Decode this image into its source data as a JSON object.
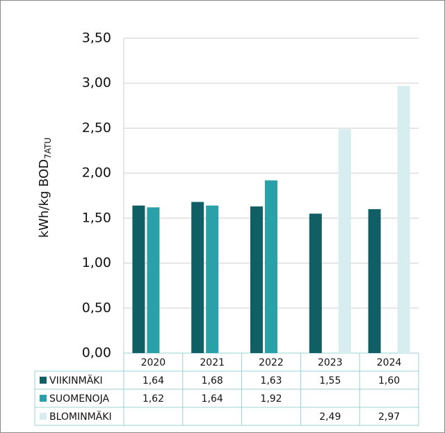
{
  "chart_data": {
    "type": "bar",
    "y_label": "kWh/kg BOD",
    "y_label_subscript": "7ATU",
    "categories": [
      "2020",
      "2021",
      "2022",
      "2023",
      "2024"
    ],
    "series": [
      {
        "name": "VIIKINMÄKI",
        "color": "#0f5f64",
        "values": [
          1.64,
          1.68,
          1.63,
          1.55,
          1.6
        ],
        "value_labels": [
          "1,64",
          "1,68",
          "1,63",
          "1,55",
          "1,60"
        ]
      },
      {
        "name": "SUOMENOJA",
        "color": "#2aa1a9",
        "values": [
          1.62,
          1.64,
          1.92,
          null,
          null
        ],
        "value_labels": [
          "1,62",
          "1,64",
          "1,92",
          null,
          null
        ]
      },
      {
        "name": "BLOMINMÄKI",
        "color": "#d8edef",
        "values": [
          null,
          null,
          null,
          2.49,
          2.97
        ],
        "value_labels": [
          null,
          null,
          null,
          "2,49",
          "2,97"
        ]
      }
    ],
    "ylim": [
      0,
      3.5
    ],
    "yticks": [
      {
        "value": 0,
        "label": "0,00"
      },
      {
        "value": 0.5,
        "label": "0,50"
      },
      {
        "value": 1,
        "label": "1,00"
      },
      {
        "value": 1.5,
        "label": "1,50"
      },
      {
        "value": 2,
        "label": "2,00"
      },
      {
        "value": 2.5,
        "label": "2,50"
      },
      {
        "value": 3,
        "label": "3,00"
      },
      {
        "value": 3.5,
        "label": "3,50"
      }
    ],
    "grid": true
  }
}
